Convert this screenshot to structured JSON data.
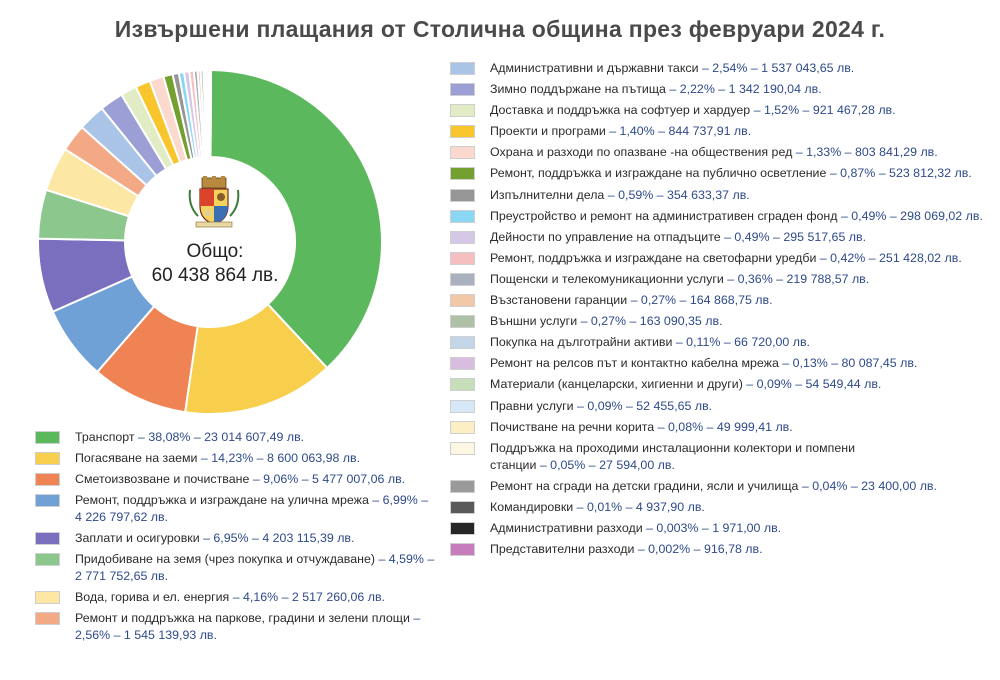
{
  "chart_data": {
    "type": "pie",
    "title": "Извършени плащания от Столична община през февруари 2024 г.",
    "center_label": {
      "line1": "Общо:",
      "line2": "60 438 864 лв."
    },
    "slices": [
      {
        "label": "Транспорт",
        "percent": 38.08,
        "value": "23 014 607,49 лв.",
        "percent_text": "38,08%",
        "color": "#5cb85c",
        "col": "left",
        "suffix_lines": []
      },
      {
        "label": "Погасяване на заеми",
        "percent": 14.23,
        "value": "8 600 063,98 лв.",
        "percent_text": "14,23%",
        "color": "#f7cf4d",
        "col": "left",
        "suffix_lines": []
      },
      {
        "label": "Сметоизвозване и почистване",
        "percent": 9.06,
        "value": "5 477 007,06 лв.",
        "percent_text": "9,06%",
        "color": "#ef8353",
        "col": "left",
        "suffix_lines": []
      },
      {
        "label": "Ремонт, поддръжка и изграждане на улична мрежа",
        "percent": 6.99,
        "value": "4 226 797,62 лв.",
        "percent_text": "6,99%",
        "color": "#6fa1d6",
        "col": "left",
        "suffix_lines": []
      },
      {
        "label": "Заплати и осигуровки",
        "percent": 6.95,
        "value": "4 203 115,39 лв.",
        "percent_text": "6,95%",
        "color": "#7a6fbf",
        "col": "left",
        "suffix_lines": []
      },
      {
        "label": "Придобиване на земя (чрез покупка и отчуждаване)",
        "percent": 4.59,
        "value": "2 771 752,65 лв.",
        "percent_text": "4,59%",
        "color": "#8cc78e",
        "col": "left",
        "suffix_lines": []
      },
      {
        "label": "Вода, горива и ел. енергия",
        "percent": 4.16,
        "value": "2 517 260,06 лв.",
        "percent_text": "4,16%",
        "color": "#fde7a4",
        "col": "left",
        "suffix_lines": []
      },
      {
        "label": "Ремонт и поддръжка на паркове, градини и зелени площи",
        "percent": 2.56,
        "value": "1 545 139,93 лв.",
        "percent_text": "2,56%",
        "color": "#f3a886",
        "col": "left",
        "suffix_lines": []
      },
      {
        "label": "Административни и държавни такси",
        "percent": 2.54,
        "value": "1 537 043,65 лв.",
        "percent_text": "2,54%",
        "color": "#a9c4e6",
        "col": "right",
        "suffix_lines": []
      },
      {
        "label": "Зимно поддържане на пътища",
        "percent": 2.22,
        "value": "1 342 190,04 лв.",
        "percent_text": "2,22%",
        "color": "#9b9fd6",
        "col": "right",
        "suffix_lines": []
      },
      {
        "label": "Доставка и поддръжка на софтуер и хардуер",
        "percent": 1.52,
        "value": "921 467,28 лв.",
        "percent_text": "1,52%",
        "color": "#e2ecc4",
        "col": "right",
        "suffix_lines": []
      },
      {
        "label": "Проекти и програми",
        "percent": 1.4,
        "value": "844 737,91 лв.",
        "percent_text": "1,40%",
        "color": "#f8c52c",
        "col": "right",
        "suffix_lines": []
      },
      {
        "label": "Охрана и разходи по опазване -на обществения ред",
        "percent": 1.33,
        "value": "803 841,29 лв.",
        "percent_text": "1,33%",
        "color": "#fbd9ce",
        "col": "right",
        "suffix_lines": []
      },
      {
        "label": "Ремонт, поддръжка и изграждане на публично осветление",
        "percent": 0.87,
        "value": "523 812,32 лв.",
        "percent_text": "0,87%",
        "color": "#74a02f",
        "col": "right",
        "suffix_lines": []
      },
      {
        "label": "Изпълнителни дела",
        "percent": 0.59,
        "value": "354 633,37 лв.",
        "percent_text": "0,59%",
        "color": "#969696",
        "col": "right",
        "suffix_lines": []
      },
      {
        "label": "Преустройство и ремонт на административен сграден фонд",
        "percent": 0.49,
        "value": "298 069,02 лв.",
        "percent_text": "0,49%",
        "color": "#89d7f3",
        "col": "right",
        "suffix_lines": []
      },
      {
        "label": "Дейности по управление на отпадъците",
        "percent": 0.49,
        "value": "295 517,65 лв.",
        "percent_text": "0,49%",
        "color": "#d5c7e6",
        "col": "right",
        "suffix_lines": []
      },
      {
        "label": "Ремонт, поддръжка и изграждане на светофарни уредби",
        "percent": 0.42,
        "value": "251 428,02 лв.",
        "percent_text": "0,42%",
        "color": "#f5bfbf",
        "col": "right",
        "suffix_lines": []
      },
      {
        "label": "Пощенски и телекомуникационни услуги",
        "percent": 0.36,
        "value": "219 788,57 лв.",
        "percent_text": "0,36%",
        "color": "#a8b1bd",
        "col": "right",
        "suffix_lines": []
      },
      {
        "label": "Възстановени гаранции",
        "percent": 0.27,
        "value": "164 868,75 лв.",
        "percent_text": "0,27%",
        "color": "#f2c9a8",
        "col": "right",
        "suffix_lines": []
      },
      {
        "label": "Външни услуги",
        "percent": 0.27,
        "value": "163 090,35 лв.",
        "percent_text": "0,27%",
        "color": "#aec1a6",
        "col": "right",
        "suffix_lines": []
      },
      {
        "label": "Покупка на дълготрайни активи",
        "percent": 0.11,
        "value": "66 720,00 лв.",
        "percent_text": "0,11%",
        "color": "#c3d6e8",
        "col": "right",
        "suffix_lines": []
      },
      {
        "label": "Ремонт на релсов път и контактно кабелна мрежа",
        "percent": 0.13,
        "value": "80 087,45 лв.",
        "percent_text": "0,13%",
        "color": "#d8bde0",
        "col": "right",
        "suffix_lines": []
      },
      {
        "label": "Материали (канцеларски, хигиенни и други)",
        "percent": 0.09,
        "value": "54 549,44 лв.",
        "percent_text": "0,09%",
        "color": "#c6deb9",
        "col": "right",
        "suffix_lines": []
      },
      {
        "label": "Правни услуги",
        "percent": 0.09,
        "value": "52 455,65 лв.",
        "percent_text": "0,09%",
        "color": "#d6e8f7",
        "col": "right",
        "suffix_lines": []
      },
      {
        "label": "Почистване на речни корита",
        "percent": 0.08,
        "value": "49 999,41 лв.",
        "percent_text": "0,08%",
        "color": "#fcefc4",
        "col": "right",
        "suffix_lines": []
      },
      {
        "label": "Поддръжка на проходими инсталационни колектори и помпени",
        "percent": 0.05,
        "value": "27 594,00 лв.",
        "percent_text": "0,05%",
        "color": "#fdf6e3",
        "col": "right",
        "suffix_lines": [
          "станции"
        ]
      },
      {
        "label": "Ремонт на сгради на детски градини, ясли и училища",
        "percent": 0.04,
        "value": "23 400,00 лв.",
        "percent_text": "0,04%",
        "color": "#9a9a9a",
        "col": "right",
        "suffix_lines": []
      },
      {
        "label": "Командировки",
        "percent": 0.01,
        "value": "4 937,90 лв.",
        "percent_text": "0,01%",
        "color": "#5a5a5a",
        "col": "right",
        "suffix_lines": []
      },
      {
        "label": "Административни разходи",
        "percent": 0.003,
        "value": "1 971,00 лв.",
        "percent_text": "0,003%",
        "color": "#262626",
        "col": "right",
        "suffix_lines": []
      },
      {
        "label": "Представителни разходи",
        "percent": 0.002,
        "value": "916,78 лв.",
        "percent_text": "0,002%",
        "color": "#c77dbc",
        "col": "right",
        "suffix_lines": []
      }
    ],
    "crest": {
      "motto": "РАСТЕ НО НЕ СТАРЕЕ"
    }
  }
}
